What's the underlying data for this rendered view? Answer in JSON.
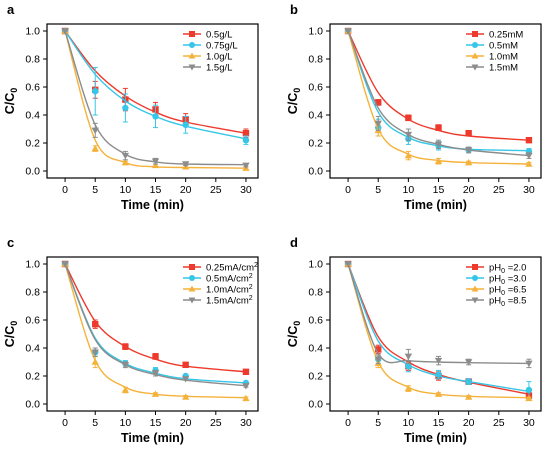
{
  "chart_data": [
    {
      "type": "scatter",
      "panel_label": "a",
      "xlabel": "Time (min)",
      "ylabel": "C/C",
      "ylabel_sub": "0",
      "xlim": [
        -3,
        32
      ],
      "ylim": [
        -0.05,
        1.05
      ],
      "xticks": [
        0,
        5,
        10,
        15,
        20,
        25,
        30
      ],
      "yticks": [
        0.0,
        0.2,
        0.4,
        0.6,
        0.8,
        1.0
      ],
      "legend_position": "top-right",
      "x": [
        0,
        5,
        10,
        15,
        20,
        30
      ],
      "series": [
        {
          "name": "0.5g/L",
          "color": "#ee3a2c",
          "marker": "square",
          "values": [
            1.0,
            0.58,
            0.51,
            0.44,
            0.37,
            0.27
          ],
          "errors": [
            0.0,
            0.06,
            0.08,
            0.05,
            0.04,
            0.03
          ],
          "fit": [
            1.0,
            0.715,
            0.535,
            0.42,
            0.35,
            0.27
          ]
        },
        {
          "name": "0.75g/L",
          "color": "#35c6e8",
          "marker": "circle",
          "values": [
            1.0,
            0.57,
            0.45,
            0.39,
            0.33,
            0.22
          ],
          "errors": [
            0.0,
            0.17,
            0.1,
            0.08,
            0.06,
            0.03
          ],
          "fit": [
            1.0,
            0.69,
            0.5,
            0.39,
            0.32,
            0.23
          ]
        },
        {
          "name": "1.0g/L",
          "color": "#f5b23a",
          "marker": "triangle-up",
          "values": [
            1.0,
            0.16,
            0.06,
            0.04,
            0.03,
            0.02
          ],
          "errors": [
            0.0,
            0.02,
            0.01,
            0.01,
            0.01,
            0.01
          ],
          "fit": [
            1.0,
            0.22,
            0.06,
            0.03,
            0.025,
            0.02
          ]
        },
        {
          "name": "1.5g/L",
          "color": "#8c8c8c",
          "marker": "triangle-down",
          "values": [
            1.0,
            0.29,
            0.11,
            0.07,
            0.05,
            0.04
          ],
          "errors": [
            0.0,
            0.05,
            0.03,
            0.02,
            0.01,
            0.01
          ],
          "fit": [
            1.0,
            0.33,
            0.12,
            0.065,
            0.05,
            0.045
          ]
        }
      ]
    },
    {
      "type": "scatter",
      "panel_label": "b",
      "xlabel": "Time (min)",
      "ylabel": "C/C",
      "ylabel_sub": "0",
      "xlim": [
        -3,
        32
      ],
      "ylim": [
        -0.05,
        1.05
      ],
      "xticks": [
        0,
        5,
        10,
        15,
        20,
        25,
        30
      ],
      "yticks": [
        0.0,
        0.2,
        0.4,
        0.6,
        0.8,
        1.0
      ],
      "legend_position": "top-right",
      "x": [
        0,
        5,
        10,
        15,
        20,
        30
      ],
      "series": [
        {
          "name": "0.25mM",
          "color": "#ee3a2c",
          "marker": "square",
          "values": [
            1.0,
            0.49,
            0.38,
            0.31,
            0.27,
            0.22
          ],
          "errors": [
            0.0,
            0.02,
            0.02,
            0.02,
            0.01,
            0.01
          ],
          "fit": [
            1.0,
            0.56,
            0.37,
            0.29,
            0.25,
            0.22
          ]
        },
        {
          "name": "0.5mM",
          "color": "#35c6e8",
          "marker": "circle",
          "values": [
            1.0,
            0.31,
            0.23,
            0.18,
            0.15,
            0.14
          ],
          "errors": [
            0.0,
            0.06,
            0.04,
            0.03,
            0.02,
            0.02
          ],
          "fit": [
            1.0,
            0.42,
            0.24,
            0.18,
            0.155,
            0.145
          ]
        },
        {
          "name": "1.0mM",
          "color": "#f5b23a",
          "marker": "triangle-up",
          "values": [
            1.0,
            0.29,
            0.11,
            0.07,
            0.06,
            0.05
          ],
          "errors": [
            0.0,
            0.04,
            0.03,
            0.02,
            0.01,
            0.01
          ],
          "fit": [
            1.0,
            0.3,
            0.12,
            0.075,
            0.06,
            0.05
          ]
        },
        {
          "name": "1.5mM",
          "color": "#8c8c8c",
          "marker": "triangle-down",
          "values": [
            1.0,
            0.34,
            0.26,
            0.19,
            0.15,
            0.11
          ],
          "errors": [
            0.0,
            0.05,
            0.04,
            0.03,
            0.02,
            0.02
          ],
          "fit": [
            1.0,
            0.45,
            0.26,
            0.19,
            0.15,
            0.11
          ]
        }
      ]
    },
    {
      "type": "scatter",
      "panel_label": "c",
      "xlabel": "Time (min)",
      "ylabel": "C/C",
      "ylabel_sub": "0",
      "xlim": [
        -3,
        32
      ],
      "ylim": [
        -0.05,
        1.05
      ],
      "xticks": [
        0,
        5,
        10,
        15,
        20,
        25,
        30
      ],
      "yticks": [
        0.0,
        0.2,
        0.4,
        0.6,
        0.8,
        1.0
      ],
      "legend_position": "top-right",
      "x": [
        0,
        5,
        10,
        15,
        20,
        30
      ],
      "series": [
        {
          "name": "0.25mA/cm",
          "name_sup": "2",
          "color": "#ee3a2c",
          "marker": "square",
          "values": [
            1.0,
            0.57,
            0.41,
            0.34,
            0.28,
            0.23
          ],
          "errors": [
            0.0,
            0.03,
            0.02,
            0.02,
            0.01,
            0.01
          ],
          "fit": [
            1.0,
            0.59,
            0.41,
            0.32,
            0.27,
            0.23
          ]
        },
        {
          "name": "0.5mA/cm",
          "name_sup": "2",
          "color": "#35c6e8",
          "marker": "circle",
          "values": [
            1.0,
            0.37,
            0.29,
            0.24,
            0.2,
            0.15
          ],
          "errors": [
            0.0,
            0.03,
            0.02,
            0.02,
            0.01,
            0.01
          ],
          "fit": [
            1.0,
            0.47,
            0.29,
            0.22,
            0.18,
            0.15
          ]
        },
        {
          "name": "1.0mA/cm",
          "name_sup": "2",
          "color": "#f5b23a",
          "marker": "triangle-up",
          "values": [
            1.0,
            0.3,
            0.1,
            0.07,
            0.05,
            0.04
          ],
          "errors": [
            0.0,
            0.04,
            0.02,
            0.01,
            0.01,
            0.01
          ],
          "fit": [
            1.0,
            0.31,
            0.12,
            0.07,
            0.055,
            0.045
          ]
        },
        {
          "name": "1.5mA/cm",
          "name_sup": "2",
          "color": "#8c8c8c",
          "marker": "triangle-down",
          "values": [
            1.0,
            0.37,
            0.28,
            0.22,
            0.18,
            0.13
          ],
          "errors": [
            0.0,
            0.03,
            0.02,
            0.02,
            0.01,
            0.01
          ],
          "fit": [
            1.0,
            0.46,
            0.28,
            0.21,
            0.17,
            0.13
          ]
        }
      ]
    },
    {
      "type": "scatter",
      "panel_label": "d",
      "xlabel": "Time (min)",
      "ylabel": "C/C",
      "ylabel_sub": "0",
      "xlim": [
        -3,
        32
      ],
      "ylim": [
        -0.05,
        1.05
      ],
      "xticks": [
        0,
        5,
        10,
        15,
        20,
        25,
        30
      ],
      "yticks": [
        0.0,
        0.2,
        0.4,
        0.6,
        0.8,
        1.0
      ],
      "legend_position": "top-right",
      "x": [
        0,
        5,
        10,
        15,
        20,
        30
      ],
      "series": [
        {
          "name": "pH",
          "name_sub": "0",
          "name_suffix": " =2.0",
          "color": "#ee3a2c",
          "marker": "square",
          "values": [
            1.0,
            0.39,
            0.27,
            0.2,
            0.16,
            0.06
          ],
          "errors": [
            0.0,
            0.03,
            0.03,
            0.03,
            0.02,
            0.02
          ],
          "fit": [
            1.0,
            0.48,
            0.3,
            0.21,
            0.155,
            0.07
          ]
        },
        {
          "name": "pH",
          "name_sub": "0",
          "name_suffix": " =3.0",
          "color": "#35c6e8",
          "marker": "circle",
          "values": [
            1.0,
            0.32,
            0.27,
            0.21,
            0.16,
            0.1
          ],
          "errors": [
            0.0,
            0.03,
            0.04,
            0.03,
            0.02,
            0.06
          ],
          "fit": [
            1.0,
            0.45,
            0.28,
            0.2,
            0.16,
            0.09
          ]
        },
        {
          "name": "pH",
          "name_sub": "0",
          "name_suffix": " =6.5",
          "color": "#f5b23a",
          "marker": "triangle-up",
          "values": [
            1.0,
            0.29,
            0.11,
            0.07,
            0.05,
            0.04
          ],
          "errors": [
            0.0,
            0.03,
            0.02,
            0.01,
            0.01,
            0.01
          ],
          "fit": [
            1.0,
            0.3,
            0.12,
            0.07,
            0.055,
            0.045
          ]
        },
        {
          "name": "pH",
          "name_sub": "0",
          "name_suffix": " =8.5",
          "color": "#8c8c8c",
          "marker": "triangle-down",
          "values": [
            1.0,
            0.32,
            0.34,
            0.31,
            0.3,
            0.29
          ],
          "errors": [
            0.0,
            0.03,
            0.05,
            0.03,
            0.02,
            0.03
          ],
          "fit": [
            1.0,
            0.36,
            0.31,
            0.3,
            0.295,
            0.29
          ]
        }
      ]
    }
  ]
}
